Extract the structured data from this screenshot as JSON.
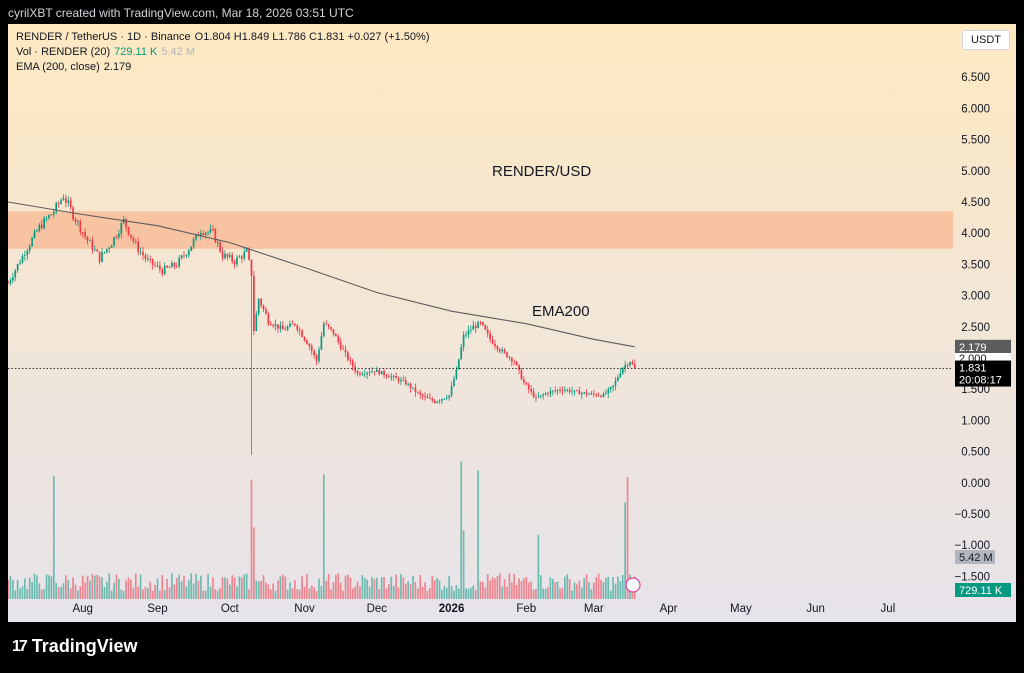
{
  "caption": "cyrilXBT created with TradingView.com, Mar 18, 2026 03:51 UTC",
  "legend": {
    "symbol_line": "RENDER / TetherUS · 1D · Binance",
    "ohlc": "O1.804  H1.849  L1.786  C1.831  +0.027 (+1.50%)",
    "vol_label": "Vol · RENDER (20)",
    "vol_value": "729.11 K",
    "vol_ma": "5.42 M",
    "ema_label": "EMA (200, close)",
    "ema_value": "2.179"
  },
  "currency_button": "USDT",
  "footer_brand": "TradingView",
  "colors": {
    "up": "#089981",
    "down": "#f23645",
    "ema": "#5d5d5d",
    "zone": "#f7b792"
  },
  "chart_data": {
    "type": "candlestick",
    "title": "RENDER/USD",
    "annotations": [
      "RENDER/USD",
      "EMA200"
    ],
    "y_ticks": [
      "6.500",
      "6.000",
      "5.500",
      "5.000",
      "4.500",
      "4.000",
      "3.500",
      "3.000",
      "2.500",
      "2.000",
      "1.500",
      "1.000",
      "0.500",
      "0.000",
      "−0.500",
      "−1.000",
      "−1.500"
    ],
    "ylim": [
      -1.75,
      7.0
    ],
    "x_ticks": [
      {
        "label": "Aug",
        "date": "2025-08-01"
      },
      {
        "label": "Sep",
        "date": "2025-09-01"
      },
      {
        "label": "Oct",
        "date": "2025-10-01"
      },
      {
        "label": "Nov",
        "date": "2025-11-01"
      },
      {
        "label": "Dec",
        "date": "2025-12-01"
      },
      {
        "label": "2026",
        "date": "2026-01-01"
      },
      {
        "label": "Feb",
        "date": "2026-02-01"
      },
      {
        "label": "Mar",
        "date": "2026-03-01"
      },
      {
        "label": "Apr",
        "date": "2026-04-01"
      },
      {
        "label": "May",
        "date": "2026-05-01"
      },
      {
        "label": "Jun",
        "date": "2026-06-01"
      },
      {
        "label": "Jul",
        "date": "2026-07-01"
      }
    ],
    "supply_zone": [
      3.75,
      4.35
    ],
    "last_price": "1.831",
    "countdown": "20:08:17",
    "ema_tag": "2.179",
    "hidden_price_tag": "2.000",
    "vol_ma_tag": "5.42 M",
    "vol_tag": "729.11 K",
    "close_series": [
      {
        "date": "2025-07-01",
        "close": 3.2
      },
      {
        "date": "2025-07-08",
        "close": 3.7
      },
      {
        "date": "2025-07-14",
        "close": 4.1
      },
      {
        "date": "2025-07-20",
        "close": 4.35
      },
      {
        "date": "2025-07-24",
        "close": 4.6
      },
      {
        "date": "2025-07-28",
        "close": 4.3
      },
      {
        "date": "2025-08-02",
        "close": 3.95
      },
      {
        "date": "2025-08-08",
        "close": 3.6
      },
      {
        "date": "2025-08-13",
        "close": 3.85
      },
      {
        "date": "2025-08-18",
        "close": 4.2
      },
      {
        "date": "2025-08-23",
        "close": 3.8
      },
      {
        "date": "2025-08-28",
        "close": 3.55
      },
      {
        "date": "2025-09-03",
        "close": 3.4
      },
      {
        "date": "2025-09-09",
        "close": 3.5
      },
      {
        "date": "2025-09-14",
        "close": 3.75
      },
      {
        "date": "2025-09-19",
        "close": 4.05
      },
      {
        "date": "2025-09-24",
        "close": 4.0
      },
      {
        "date": "2025-09-28",
        "close": 3.65
      },
      {
        "date": "2025-10-03",
        "close": 3.55
      },
      {
        "date": "2025-10-08",
        "close": 3.7
      },
      {
        "date": "2025-10-10",
        "close": 3.35
      },
      {
        "date": "2025-10-11",
        "close": 2.45
      },
      {
        "date": "2025-10-13",
        "close": 2.95
      },
      {
        "date": "2025-10-17",
        "close": 2.6
      },
      {
        "date": "2025-10-23",
        "close": 2.45
      },
      {
        "date": "2025-10-28",
        "close": 2.55
      },
      {
        "date": "2025-11-03",
        "close": 2.2
      },
      {
        "date": "2025-11-06",
        "close": 1.95
      },
      {
        "date": "2025-11-09",
        "close": 2.55
      },
      {
        "date": "2025-11-13",
        "close": 2.4
      },
      {
        "date": "2025-11-18",
        "close": 2.05
      },
      {
        "date": "2025-11-23",
        "close": 1.75
      },
      {
        "date": "2025-11-30",
        "close": 1.8
      },
      {
        "date": "2025-12-07",
        "close": 1.7
      },
      {
        "date": "2025-12-13",
        "close": 1.6
      },
      {
        "date": "2025-12-19",
        "close": 1.4
      },
      {
        "date": "2025-12-25",
        "close": 1.3
      },
      {
        "date": "2025-12-31",
        "close": 1.4
      },
      {
        "date": "2026-01-03",
        "close": 1.8
      },
      {
        "date": "2026-01-06",
        "close": 2.35
      },
      {
        "date": "2026-01-10",
        "close": 2.5
      },
      {
        "date": "2026-01-13",
        "close": 2.55
      },
      {
        "date": "2026-01-17",
        "close": 2.3
      },
      {
        "date": "2026-01-22",
        "close": 2.1
      },
      {
        "date": "2026-01-27",
        "close": 1.95
      },
      {
        "date": "2026-01-31",
        "close": 1.6
      },
      {
        "date": "2026-02-05",
        "close": 1.35
      },
      {
        "date": "2026-02-10",
        "close": 1.45
      },
      {
        "date": "2026-02-16",
        "close": 1.5
      },
      {
        "date": "2026-02-22",
        "close": 1.45
      },
      {
        "date": "2026-02-28",
        "close": 1.42
      },
      {
        "date": "2026-03-05",
        "close": 1.4
      },
      {
        "date": "2026-03-09",
        "close": 1.55
      },
      {
        "date": "2026-03-13",
        "close": 1.85
      },
      {
        "date": "2026-03-16",
        "close": 1.95
      },
      {
        "date": "2026-03-18",
        "close": 1.831
      }
    ],
    "ema200_series": [
      {
        "date": "2025-07-01",
        "value": 4.5
      },
      {
        "date": "2025-08-01",
        "value": 4.3
      },
      {
        "date": "2025-09-01",
        "value": 4.12
      },
      {
        "date": "2025-10-01",
        "value": 3.85
      },
      {
        "date": "2025-11-01",
        "value": 3.45
      },
      {
        "date": "2025-12-01",
        "value": 3.05
      },
      {
        "date": "2026-01-01",
        "value": 2.75
      },
      {
        "date": "2026-02-01",
        "value": 2.55
      },
      {
        "date": "2026-03-01",
        "value": 2.3
      },
      {
        "date": "2026-03-18",
        "value": 2.179
      }
    ]
  }
}
